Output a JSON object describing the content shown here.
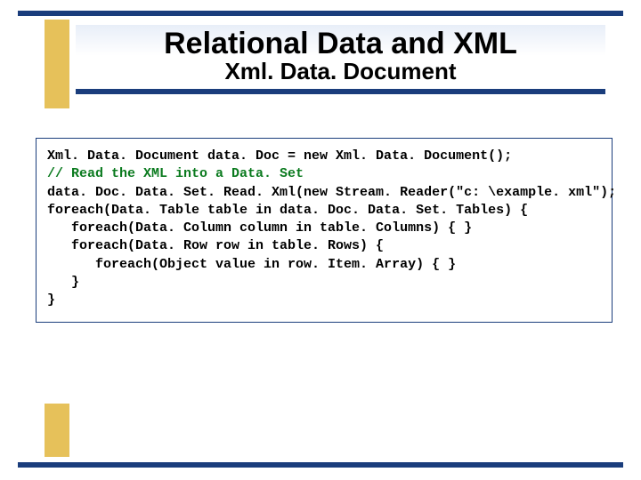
{
  "colors": {
    "bar": "#1a3d7c",
    "gold": "#e6c15a",
    "comment": "#0a7a1e",
    "bg": "#ffffff",
    "title_grad_top": "#e8eef8"
  },
  "title": {
    "main": "Relational Data and XML",
    "sub": "Xml. Data. Document"
  },
  "code": {
    "l1": "Xml. Data. Document data. Doc = new Xml. Data. Document();",
    "l2": "",
    "l3": "// Read the XML into a Data. Set",
    "l4": "data. Doc. Data. Set. Read. Xml(new Stream. Reader(\"c: \\example. xml\");",
    "l5": "",
    "l6": "foreach(Data. Table table in data. Doc. Data. Set. Tables) {",
    "l7": "   foreach(Data. Column column in table. Columns) { }",
    "l8": "",
    "l9": "   foreach(Data. Row row in table. Rows) {",
    "l10": "      foreach(Object value in row. Item. Array) { }",
    "l11": "   }",
    "l12": "}"
  }
}
